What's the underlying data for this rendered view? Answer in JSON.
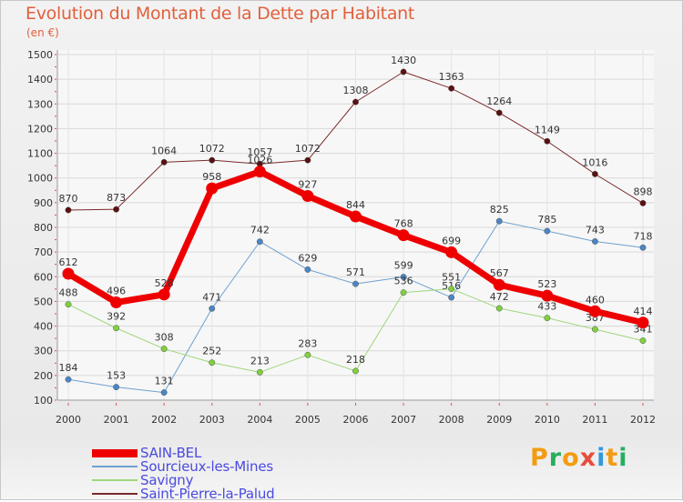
{
  "title": "Evolution du Montant de la Dette par Habitant",
  "subtitle": "(en €)",
  "logo": {
    "text": "Proxiti",
    "letters": [
      "P",
      "r",
      "o",
      "x",
      "i",
      "t",
      "i"
    ],
    "colors": [
      "#f39c12",
      "#27ae60",
      "#f39c12",
      "#e74c3c",
      "#3498db",
      "#f39c12",
      "#27ae60"
    ]
  },
  "chart_data": {
    "type": "line",
    "title": "Evolution du Montant de la Dette par Habitant",
    "subtitle": "(en €)",
    "xlabel": "",
    "ylabel": "",
    "ylim": [
      100,
      1500
    ],
    "yticks": [
      100,
      200,
      300,
      400,
      500,
      600,
      700,
      800,
      900,
      1000,
      1100,
      1200,
      1300,
      1400,
      1500
    ],
    "x": [
      "2000",
      "2001",
      "2002",
      "2003",
      "2004",
      "2005",
      "2006",
      "2007",
      "2008",
      "2009",
      "2010",
      "2011",
      "2012"
    ],
    "grid": true,
    "legend_position": "bottom-left",
    "series": [
      {
        "name": "Saint-Pierre-la-Palud",
        "color": "#7a2a2a",
        "marker": "#5a1010",
        "width": 1,
        "values": [
          870,
          873,
          1064,
          1072,
          1057,
          1072,
          1308,
          1430,
          1363,
          1264,
          1149,
          1016,
          898
        ]
      },
      {
        "name": "Sourcieux-les-Mines",
        "color": "#6ea0cf",
        "marker": "#4a86c6",
        "width": 1,
        "values": [
          184,
          153,
          131,
          471,
          742,
          629,
          571,
          599,
          516,
          825,
          785,
          743,
          718
        ]
      },
      {
        "name": "Savigny",
        "color": "#9fd67c",
        "marker": "#7fd03c",
        "width": 1,
        "values": [
          488,
          392,
          308,
          252,
          213,
          283,
          218,
          536,
          551,
          472,
          433,
          387,
          341
        ]
      },
      {
        "name": "SAIN-BEL",
        "color": "#ee0000",
        "marker": "#ee0000",
        "width": 7,
        "values": [
          612,
          496,
          528,
          958,
          1026,
          927,
          844,
          768,
          699,
          567,
          523,
          460,
          414
        ]
      }
    ]
  },
  "legend": [
    {
      "label": "SAIN-BEL",
      "color": "#ee0000",
      "thickness": 9
    },
    {
      "label": "Sourcieux-les-Mines",
      "color": "#6ea0cf",
      "thickness": 2
    },
    {
      "label": "Savigny",
      "color": "#9fd67c",
      "thickness": 2
    },
    {
      "label": "Saint-Pierre-la-Palud",
      "color": "#7a2a2a",
      "thickness": 2
    }
  ]
}
